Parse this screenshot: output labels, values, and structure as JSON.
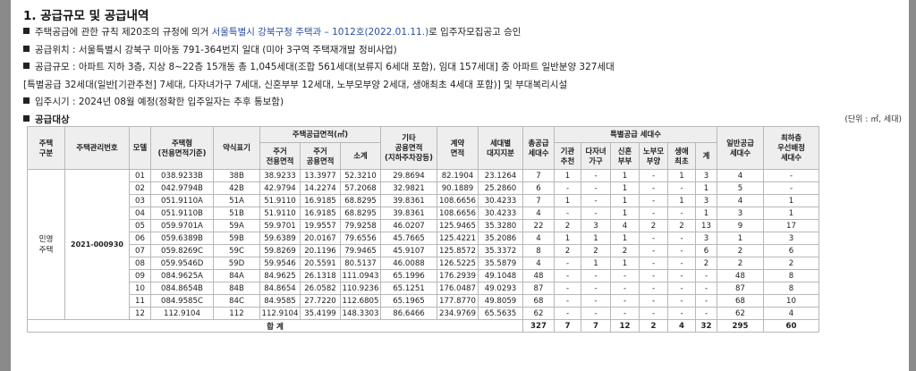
{
  "title": "1. 공급규모 및 공급내역",
  "bullets": {
    "rule_prefix": "주택공급에 관한 규칙 제20조의 규정에 의거 ",
    "rule_highlight": "서울특별시 강북구청 주택과 – 1012호",
    "rule_date": "(2022.01.11.)",
    "rule_suffix": "로 입주자모집공고 승인",
    "location": "공급위치 : 서울특별시 강북구 미아동 791-364번지 일대 (미아 3구역 주택재개발 정비사업)",
    "scale1": "공급규모 : 아파트 지하 3층, 지상 8~22층 15개동 총 1,045세대(조합 561세대(보류지 6세대 포함), 임대 157세대] 중 아파트 일반분양 327세대",
    "scale2": "[특별공급 32세대(일반[기관추천] 7세대, 다자녀가구 7세대, 신혼부부 12세대, 노부모부양 2세대, 생애최초 4세대 포함)] 및 부대복리시설",
    "movein": "입주시기 : 2024년 08월 예정(정확한 입주일자는 추후 통보함)",
    "target": "공급대상"
  },
  "unit_note": "(단위 : ㎡, 세대)",
  "headers": {
    "housing_type": "주택\n구분",
    "mgmt_no": "주택관리번호",
    "model": "모델",
    "type": "주택형\n(전용면적기준)",
    "short": "약식표기",
    "supply_area": "주택공급면적(㎡)",
    "exclusive": "주거\n전용면적",
    "common": "주거\n공용면적",
    "subtotal": "소계",
    "other_common": "기타\n공용면적\n(지하주차장등)",
    "contract": "계약\n면적",
    "land": "세대별\n대지지분",
    "total_units": "총공급\n세대수",
    "special": "특별공급 세대수",
    "institution": "기관\n추천",
    "multi_child": "다자녀\n가구",
    "newlywed": "신혼\n부부",
    "elderly": "노부모\n부양",
    "first_time": "생애\n최초",
    "sum": "계",
    "general": "일반공급\n세대수",
    "lowest_floor": "최하층\n우선배정\n세대수"
  },
  "housing_type_value": "민영\n주택",
  "mgmt_no_value": "2021-000930",
  "rows": [
    [
      "01",
      "038.9233B",
      "38B",
      "38.9233",
      "13.3977",
      "52.3210",
      "29.8694",
      "82.1904",
      "23.1264",
      "7",
      "1",
      "-",
      "1",
      "-",
      "1",
      "3",
      "4",
      "-"
    ],
    [
      "02",
      "042.9794B",
      "42B",
      "42.9794",
      "14.2274",
      "57.2068",
      "32.9821",
      "90.1889",
      "25.2860",
      "6",
      "-",
      "-",
      "1",
      "-",
      "-",
      "1",
      "5",
      "-"
    ],
    [
      "03",
      "051.9110A",
      "51A",
      "51.9110",
      "16.9185",
      "68.8295",
      "39.8361",
      "108.6656",
      "30.4233",
      "7",
      "1",
      "-",
      "1",
      "-",
      "1",
      "3",
      "4",
      "1"
    ],
    [
      "04",
      "051.9110B",
      "51B",
      "51.9110",
      "16.9185",
      "68.8295",
      "39.8361",
      "108.6656",
      "30.4233",
      "4",
      "-",
      "-",
      "1",
      "-",
      "-",
      "1",
      "3",
      "1"
    ],
    [
      "05",
      "059.9701A",
      "59A",
      "59.9701",
      "19.9557",
      "79.9258",
      "46.0207",
      "125.9465",
      "35.3280",
      "22",
      "2",
      "3",
      "4",
      "2",
      "2",
      "13",
      "9",
      "17"
    ],
    [
      "06",
      "059.6389B",
      "59B",
      "59.6389",
      "20.0167",
      "79.6556",
      "45.7665",
      "125.4221",
      "35.2086",
      "4",
      "1",
      "1",
      "1",
      "-",
      "-",
      "3",
      "1",
      "3"
    ],
    [
      "07",
      "059.8269C",
      "59C",
      "59.8269",
      "20.1196",
      "79.9465",
      "45.9107",
      "125.8572",
      "35.3372",
      "8",
      "2",
      "2",
      "2",
      "-",
      "-",
      "6",
      "2",
      "6"
    ],
    [
      "08",
      "059.9546D",
      "59D",
      "59.9546",
      "20.5591",
      "80.5137",
      "46.0088",
      "126.5225",
      "35.5879",
      "4",
      "-",
      "1",
      "1",
      "-",
      "-",
      "2",
      "2",
      "2"
    ],
    [
      "09",
      "084.9625A",
      "84A",
      "84.9625",
      "26.1318",
      "111.0943",
      "65.1996",
      "176.2939",
      "49.1048",
      "48",
      "-",
      "-",
      "-",
      "-",
      "-",
      "-",
      "48",
      "8"
    ],
    [
      "10",
      "084.8654B",
      "84B",
      "84.8654",
      "26.0582",
      "110.9236",
      "65.1251",
      "176.0487",
      "49.0293",
      "87",
      "-",
      "-",
      "-",
      "-",
      "-",
      "-",
      "87",
      "8"
    ],
    [
      "11",
      "084.9585C",
      "84C",
      "84.9585",
      "27.7220",
      "112.6805",
      "65.1965",
      "177.8770",
      "49.8059",
      "68",
      "-",
      "-",
      "-",
      "-",
      "-",
      "-",
      "68",
      "10"
    ],
    [
      "12",
      "112.9104",
      "112",
      "112.9104",
      "35.4199",
      "148.3303",
      "86.6466",
      "234.9769",
      "65.5635",
      "62",
      "-",
      "-",
      "-",
      "-",
      "-",
      "-",
      "62",
      "4"
    ]
  ],
  "total": {
    "label": "합 계",
    "values": [
      "327",
      "7",
      "7",
      "12",
      "2",
      "4",
      "32",
      "295",
      "60"
    ]
  }
}
